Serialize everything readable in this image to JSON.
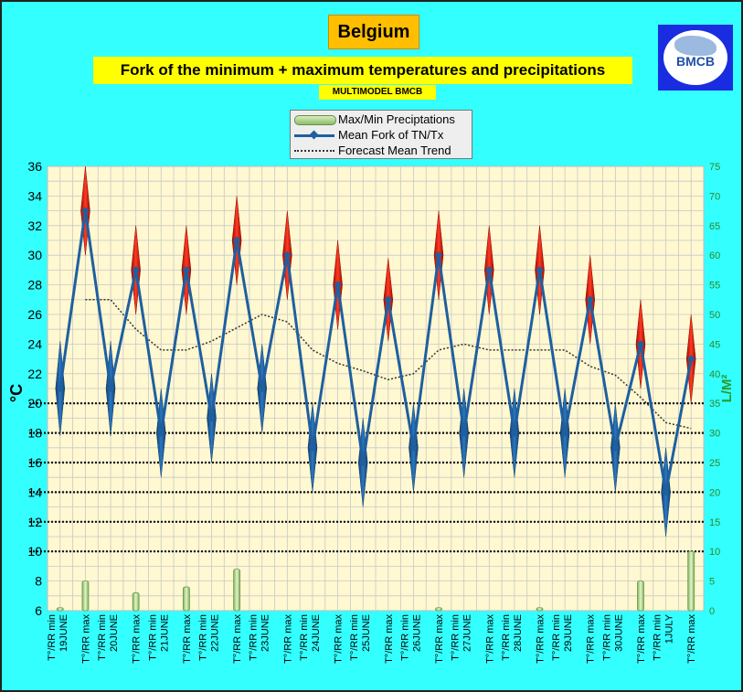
{
  "header": {
    "country": "Belgium",
    "title": "Fork of the minimum + maximum temperatures and precipitations",
    "subtitle": "MULTIMODEL BMCB",
    "logo_text": "BMCB"
  },
  "legend": {
    "items": [
      {
        "label": "Max/Min Preciptations",
        "color": "#8bbf6a"
      },
      {
        "label": "Mean Fork of TN/Tx",
        "color": "#1f5fa0"
      },
      {
        "label": "Forecast Mean Trend",
        "color": "#333333"
      }
    ]
  },
  "chart_data": {
    "type": "line",
    "categories": [
      "T°/RR min\n19JUNE",
      "T°/RR max",
      "T°/RR min\n20JUNE",
      "T°/RR max",
      "T°/RR min\n21JUNE",
      "T°/RR max",
      "T°/RR min\n22JUNE",
      "T°/RR max",
      "T°/RR min\n23JUNE",
      "T°/RR max",
      "T°/RR min\n24JUNE",
      "T°/RR max",
      "T°/RR min\n25JUNE",
      "T°/RR max",
      "T°/RR min\n26JUNE",
      "T°/RR max",
      "T°/RR min\n27JUNE",
      "T°/RR max",
      "T°/RR min\n28JUNE",
      "T°/RR max",
      "T°/RR min\n29JUNE",
      "T°/RR max",
      "T°/RR min\n30JUNE",
      "T°/RR max",
      "T°/RR min\n1JULY",
      "T°/RR max"
    ],
    "series": [
      {
        "name": "Mean Fork of TN/Tx",
        "color": "#1f5fa0",
        "values": [
          21,
          33,
          21,
          29,
          18,
          29,
          19,
          31,
          21,
          30,
          17,
          28,
          16,
          27,
          17,
          30,
          18,
          29,
          18,
          29,
          18,
          27,
          17,
          24,
          14,
          23
        ]
      },
      {
        "name": "Max/Min Preciptations",
        "color": "#8bbf6a",
        "axis": "right",
        "values": [
          0.5,
          5,
          0,
          3,
          0,
          4,
          0,
          7,
          0,
          0,
          0,
          0,
          0,
          0,
          0,
          0.5,
          0,
          0,
          0,
          0.5,
          0,
          0,
          0,
          5,
          0,
          10
        ]
      },
      {
        "name": "Forecast Mean Trend",
        "color": "#333333",
        "values": [
          null,
          27,
          27,
          25,
          23.6,
          23.6,
          24.2,
          25.1,
          26,
          25.5,
          23.6,
          22.7,
          22.2,
          21.6,
          22,
          23.6,
          24,
          23.6,
          23.6,
          23.6,
          23.6,
          22.5,
          21.9,
          20.4,
          18.7,
          18.3
        ]
      }
    ],
    "forks": [
      {
        "i": 0,
        "center": 21,
        "spread": 3.2,
        "color": "#1f5fa0"
      },
      {
        "i": 1,
        "center": 33,
        "spread": 3.0,
        "color": "#dd1a10"
      },
      {
        "i": 2,
        "center": 21,
        "spread": 3.2,
        "color": "#1f5fa0"
      },
      {
        "i": 3,
        "center": 29,
        "spread": 3.0,
        "color": "#dd1a10"
      },
      {
        "i": 4,
        "center": 18,
        "spread": 3.0,
        "color": "#1f5fa0"
      },
      {
        "i": 5,
        "center": 29,
        "spread": 3.0,
        "color": "#dd1a10"
      },
      {
        "i": 6,
        "center": 19,
        "spread": 3.0,
        "color": "#1f5fa0"
      },
      {
        "i": 7,
        "center": 31,
        "spread": 3.0,
        "color": "#dd1a10"
      },
      {
        "i": 8,
        "center": 21,
        "spread": 3.0,
        "color": "#1f5fa0"
      },
      {
        "i": 9,
        "center": 30,
        "spread": 3.0,
        "color": "#dd1a10"
      },
      {
        "i": 10,
        "center": 17,
        "spread": 3.0,
        "color": "#1f5fa0"
      },
      {
        "i": 11,
        "center": 28,
        "spread": 3.0,
        "color": "#dd1a10"
      },
      {
        "i": 12,
        "center": 16,
        "spread": 3.0,
        "color": "#1f5fa0"
      },
      {
        "i": 13,
        "center": 27,
        "spread": 2.8,
        "color": "#dd1a10"
      },
      {
        "i": 14,
        "center": 17,
        "spread": 3.0,
        "color": "#1f5fa0"
      },
      {
        "i": 15,
        "center": 30,
        "spread": 3.0,
        "color": "#dd1a10"
      },
      {
        "i": 16,
        "center": 18,
        "spread": 3.0,
        "color": "#1f5fa0"
      },
      {
        "i": 17,
        "center": 29,
        "spread": 3.0,
        "color": "#dd1a10"
      },
      {
        "i": 18,
        "center": 18,
        "spread": 3.0,
        "color": "#1f5fa0"
      },
      {
        "i": 19,
        "center": 29,
        "spread": 3.0,
        "color": "#dd1a10"
      },
      {
        "i": 20,
        "center": 18,
        "spread": 3.0,
        "color": "#1f5fa0"
      },
      {
        "i": 21,
        "center": 27,
        "spread": 3.0,
        "color": "#dd1a10"
      },
      {
        "i": 22,
        "center": 17,
        "spread": 3.0,
        "color": "#1f5fa0"
      },
      {
        "i": 23,
        "center": 24,
        "spread": 3.0,
        "color": "#dd1a10"
      },
      {
        "i": 24,
        "center": 14,
        "spread": 3.0,
        "color": "#1f5fa0"
      },
      {
        "i": 25,
        "center": 23,
        "spread": 3.0,
        "color": "#dd1a10"
      }
    ],
    "ylabel": "°C",
    "ylim": [
      6,
      36
    ],
    "yticks": [
      6,
      8,
      10,
      12,
      14,
      16,
      18,
      20,
      22,
      24,
      26,
      28,
      30,
      32,
      34,
      36
    ],
    "y2label": "L/M²",
    "y2lim": [
      0,
      75
    ],
    "y2ticks": [
      0,
      5,
      10,
      15,
      20,
      25,
      30,
      35,
      40,
      45,
      50,
      55,
      60,
      65,
      70,
      75
    ],
    "reference_lines": [
      10,
      15,
      20,
      25,
      30,
      35
    ],
    "grid": true,
    "plot_background": "#fff8d0",
    "legend_position": "top"
  }
}
